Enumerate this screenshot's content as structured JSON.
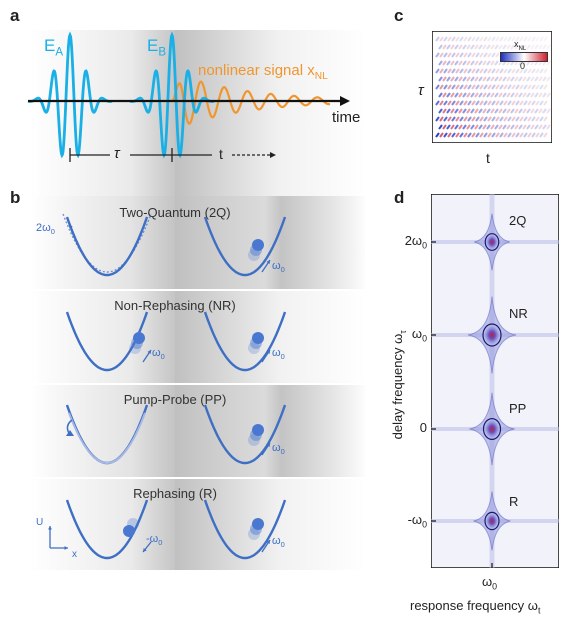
{
  "panels": {
    "a": "a",
    "b": "b",
    "c": "c",
    "d": "d"
  },
  "panel_a": {
    "pulse_a": "E",
    "pulse_a_sub": "A",
    "pulse_b": "E",
    "pulse_b_sub": "B",
    "signal": "nonlinear signal x",
    "signal_sub": "NL",
    "axis": "time",
    "tau": "τ",
    "t": "t"
  },
  "panel_b": {
    "rows": [
      {
        "title": "Two-Quantum (2Q)",
        "left_label": "2ω",
        "left_label_sub": "0",
        "right_label": "ω",
        "right_label_sub": "0"
      },
      {
        "title": "Non-Rephasing (NR)",
        "left_label": "ω",
        "left_label_sub": "0",
        "right_label": "ω",
        "right_label_sub": "0"
      },
      {
        "title": "Pump-Probe (PP)",
        "left_label": "",
        "left_label_sub": "",
        "right_label": "ω",
        "right_label_sub": "0"
      },
      {
        "title": "Rephasing (R)",
        "left_label": "-ω",
        "left_label_sub": "0",
        "right_label": "ω",
        "right_label_sub": "0"
      }
    ],
    "axis_u": "U",
    "axis_x": "x"
  },
  "panel_c": {
    "ylabel": "τ",
    "xlabel": "t",
    "colorbar_label": "x",
    "colorbar_label_sub": "NL",
    "colorbar_zero": "0"
  },
  "panel_d": {
    "ylabel": "delay frequency ω",
    "ylabel_sub": "τ",
    "xlabel": "response frequency ω",
    "xlabel_sub": "t",
    "xtick": "ω",
    "xtick_sub": "0",
    "yticks": [
      {
        "main": "2ω",
        "sub": "0"
      },
      {
        "main": "ω",
        "sub": "0"
      },
      {
        "main": "0",
        "sub": ""
      },
      {
        "main": "-ω",
        "sub": "0"
      }
    ],
    "peaks": [
      {
        "label": "2Q",
        "y": 2,
        "intensity": 0.55
      },
      {
        "label": "NR",
        "y": 1,
        "intensity": 1.0
      },
      {
        "label": "PP",
        "y": 0,
        "intensity": 0.9
      },
      {
        "label": "R",
        "y": -1,
        "intensity": 0.6
      }
    ]
  },
  "colors": {
    "pulse": "#1ab0e6",
    "signal": "#f0962e",
    "wave": "#3e6fc4",
    "peak_core": "#c0203a",
    "ball": "#4a78d0"
  }
}
